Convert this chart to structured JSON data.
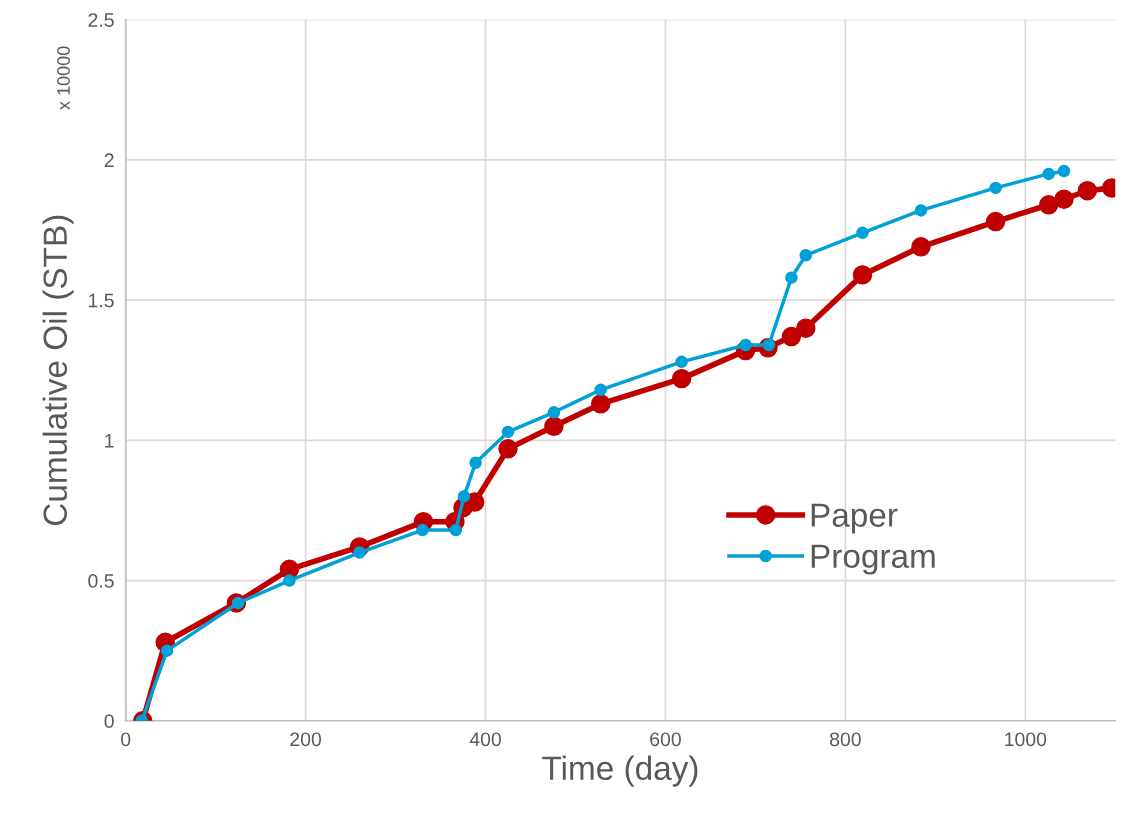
{
  "chart_data": {
    "type": "line",
    "xlabel": "Time (day)",
    "ylabel": "Cumulative Oil (STB)",
    "annotations": [
      "x 10000"
    ],
    "xlim": [
      0,
      1100
    ],
    "xticks": [
      0,
      200,
      400,
      600,
      800,
      1000
    ],
    "ylim": [
      0,
      2.5
    ],
    "yticks": [
      0,
      0.5,
      1,
      1.5,
      2,
      2.5
    ],
    "grid": true,
    "legend": "right",
    "marker": "circle",
    "line_style": "solid",
    "series": [
      {
        "name": "Paper",
        "color": "#c00000",
        "x": [
          19,
          44,
          123,
          182,
          260,
          331,
          366,
          375,
          388,
          425,
          476,
          528,
          618,
          689,
          714,
          740,
          756,
          819,
          884,
          967,
          1026,
          1043,
          1069,
          1096
        ],
        "values": [
          0,
          0.28,
          0.42,
          0.54,
          0.62,
          0.71,
          0.71,
          0.76,
          0.78,
          0.97,
          1.05,
          1.13,
          1.22,
          1.32,
          1.33,
          1.37,
          1.4,
          1.59,
          1.69,
          1.78,
          1.84,
          1.86,
          1.89,
          1.9
        ]
      },
      {
        "name": "Program",
        "color": "#00a0d8",
        "x": [
          18,
          46,
          125,
          182,
          260,
          330,
          367,
          376,
          389,
          425,
          476,
          528,
          618,
          689,
          715,
          740,
          756,
          819,
          884,
          967,
          1026,
          1043
        ],
        "values": [
          0,
          0.25,
          0.42,
          0.5,
          0.6,
          0.68,
          0.68,
          0.8,
          0.92,
          1.03,
          1.1,
          1.18,
          1.28,
          1.34,
          1.34,
          1.58,
          1.66,
          1.74,
          1.82,
          1.9,
          1.95,
          1.96
        ]
      }
    ]
  }
}
